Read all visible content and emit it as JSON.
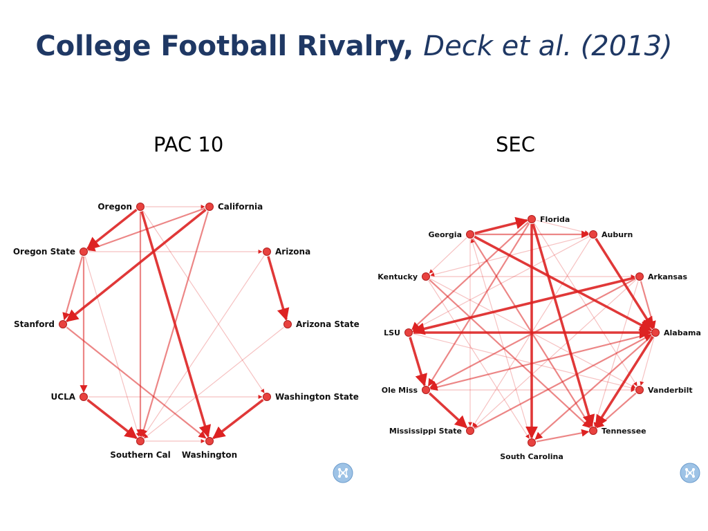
{
  "title": {
    "main": "College Football Rivalry,",
    "citation": "Deck et al. (2013)"
  },
  "panels": [
    {
      "label": "PAC 10",
      "nodes": [
        "Oregon",
        "California",
        "Oregon State",
        "Arizona",
        "Stanford",
        "Arizona State",
        "UCLA",
        "Washington State",
        "Southern Cal",
        "Washington"
      ],
      "edges": [
        [
          "Oregon",
          "Oregon State",
          3
        ],
        [
          "Oregon",
          "California",
          1
        ],
        [
          "Oregon",
          "Southern Cal",
          2
        ],
        [
          "Oregon",
          "Washington",
          3
        ],
        [
          "Oregon",
          "Washington State",
          1
        ],
        [
          "California",
          "Oregon State",
          2
        ],
        [
          "California",
          "Stanford",
          3
        ],
        [
          "California",
          "Southern Cal",
          2
        ],
        [
          "Oregon State",
          "Arizona",
          1
        ],
        [
          "Oregon State",
          "Stanford",
          2
        ],
        [
          "Oregon State",
          "UCLA",
          2
        ],
        [
          "Oregon State",
          "Southern Cal",
          1
        ],
        [
          "Arizona",
          "Arizona State",
          3
        ],
        [
          "Arizona",
          "Southern Cal",
          1
        ],
        [
          "Stanford",
          "Washington",
          2
        ],
        [
          "Arizona State",
          "Southern Cal",
          1
        ],
        [
          "UCLA",
          "Southern Cal",
          3
        ],
        [
          "UCLA",
          "Washington State",
          1
        ],
        [
          "Washington State",
          "Washington",
          3
        ],
        [
          "Southern Cal",
          "Washington",
          1
        ]
      ]
    },
    {
      "label": "SEC",
      "nodes": [
        "Florida",
        "Georgia",
        "Auburn",
        "Kentucky",
        "Arkansas",
        "LSU",
        "Alabama",
        "Ole Miss",
        "Vanderbilt",
        "Mississippi State",
        "Tennessee",
        "South Carolina"
      ],
      "edges": [
        [
          "Georgia",
          "Florida",
          3
        ],
        [
          "Georgia",
          "Auburn",
          2
        ],
        [
          "Georgia",
          "Kentucky",
          1
        ],
        [
          "Georgia",
          "Tennessee",
          2
        ],
        [
          "Georgia",
          "Mississippi State",
          1
        ],
        [
          "Georgia",
          "Alabama",
          3
        ],
        [
          "Florida",
          "LSU",
          2
        ],
        [
          "Florida",
          "Auburn",
          1
        ],
        [
          "Florida",
          "South Carolina",
          3
        ],
        [
          "Florida",
          "Ole Miss",
          2
        ],
        [
          "Florida",
          "Vanderbilt",
          1
        ],
        [
          "Florida",
          "Tennessee",
          3
        ],
        [
          "Auburn",
          "Alabama",
          3
        ],
        [
          "Auburn",
          "LSU",
          1
        ],
        [
          "Auburn",
          "Kentucky",
          1
        ],
        [
          "Auburn",
          "Mississippi State",
          1
        ],
        [
          "Kentucky",
          "Arkansas",
          1
        ],
        [
          "Kentucky",
          "Tennessee",
          2
        ],
        [
          "Kentucky",
          "Vanderbilt",
          1
        ],
        [
          "Kentucky",
          "South Carolina",
          1
        ],
        [
          "Arkansas",
          "LSU",
          3
        ],
        [
          "Arkansas",
          "Alabama",
          2
        ],
        [
          "Arkansas",
          "Ole Miss",
          2
        ],
        [
          "Arkansas",
          "Mississippi State",
          1
        ],
        [
          "Arkansas",
          "Tennessee",
          1
        ],
        [
          "LSU",
          "Alabama",
          3
        ],
        [
          "LSU",
          "Ole Miss",
          3
        ],
        [
          "LSU",
          "Vanderbilt",
          1
        ],
        [
          "Alabama",
          "Tennessee",
          3
        ],
        [
          "Alabama",
          "Ole Miss",
          2
        ],
        [
          "Alabama",
          "South Carolina",
          2
        ],
        [
          "Alabama",
          "Vanderbilt",
          1
        ],
        [
          "Ole Miss",
          "Mississippi State",
          3
        ],
        [
          "Ole Miss",
          "Vanderbilt",
          1
        ],
        [
          "Mississippi State",
          "Alabama",
          2
        ],
        [
          "Vanderbilt",
          "Tennessee",
          2
        ],
        [
          "South Carolina",
          "Tennessee",
          2
        ],
        [
          "South Carolina",
          "Georgia",
          1
        ]
      ]
    }
  ],
  "colors": {
    "title": "#1f3864",
    "node_fill": "#e8423f",
    "node_stroke": "#b01e1e",
    "edge": "#dd2222",
    "badge": "#9ec3e6"
  },
  "icons": [
    "network-logo-icon",
    "network-logo-icon"
  ]
}
